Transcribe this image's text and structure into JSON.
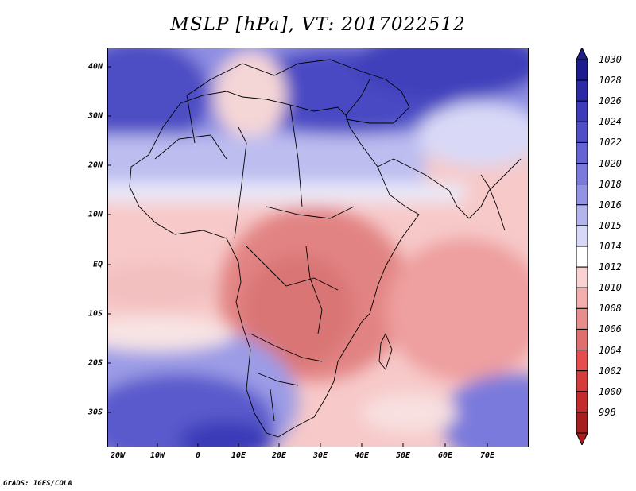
{
  "title": "MSLP [hPa], VT: 2017022512",
  "credit": "GrADS: IGES/COLA",
  "y_axis": [
    "40N",
    "30N",
    "20N",
    "10N",
    "EQ",
    "10S",
    "20S",
    "30S"
  ],
  "x_axis": [
    "20W",
    "10W",
    "0",
    "10E",
    "20E",
    "30E",
    "40E",
    "50E",
    "60E",
    "70E"
  ],
  "legend": {
    "labels": [
      "1030",
      "1028",
      "1026",
      "1024",
      "1022",
      "1020",
      "1018",
      "1016",
      "1015",
      "1014",
      "1012",
      "1010",
      "1008",
      "1006",
      "1004",
      "1002",
      "1000",
      "998"
    ],
    "colors": [
      "#1c1c8f",
      "#2b2ba5",
      "#3c3cb8",
      "#4f4fc6",
      "#6464d2",
      "#7a7adc",
      "#9393e5",
      "#b3b3ee",
      "#d7d7f7",
      "#ffffff",
      "#fbd2d2",
      "#f4aeae",
      "#e88c8c",
      "#df6e6e",
      "#e64e4e",
      "#d63c3c",
      "#c42c2c",
      "#a61e1e"
    ]
  }
}
